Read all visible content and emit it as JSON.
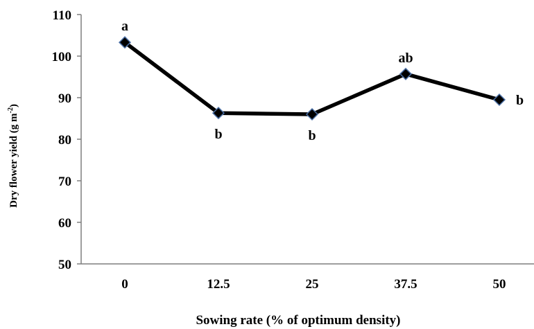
{
  "chart_data": {
    "type": "line",
    "title": "",
    "xlabel": "Sowing rate (% of optimum density)",
    "ylabel_main": "Dry flower yield (g m",
    "ylabel_sup": "-2",
    "ylabel_end": ")",
    "ylim": [
      50,
      110
    ],
    "yticks": [
      50,
      60,
      70,
      80,
      90,
      100,
      110
    ],
    "ytick_labels": [
      "50",
      "60",
      "70",
      "80",
      "90",
      "100",
      "110"
    ],
    "categories": [
      "0",
      "12.5",
      "25",
      "37.5",
      "50"
    ],
    "series": [
      {
        "values": [
          103.3,
          86.3,
          86.0,
          95.7,
          89.5
        ],
        "sig_letters": [
          "a",
          "b",
          "b",
          "ab",
          "b"
        ],
        "letter_pos": [
          "above",
          "below",
          "below",
          "above",
          "right"
        ],
        "line_color": "#000000",
        "marker_color": "#000000",
        "marker_edge": "#4a6fa5"
      }
    ],
    "grid": false,
    "legend": "none"
  }
}
